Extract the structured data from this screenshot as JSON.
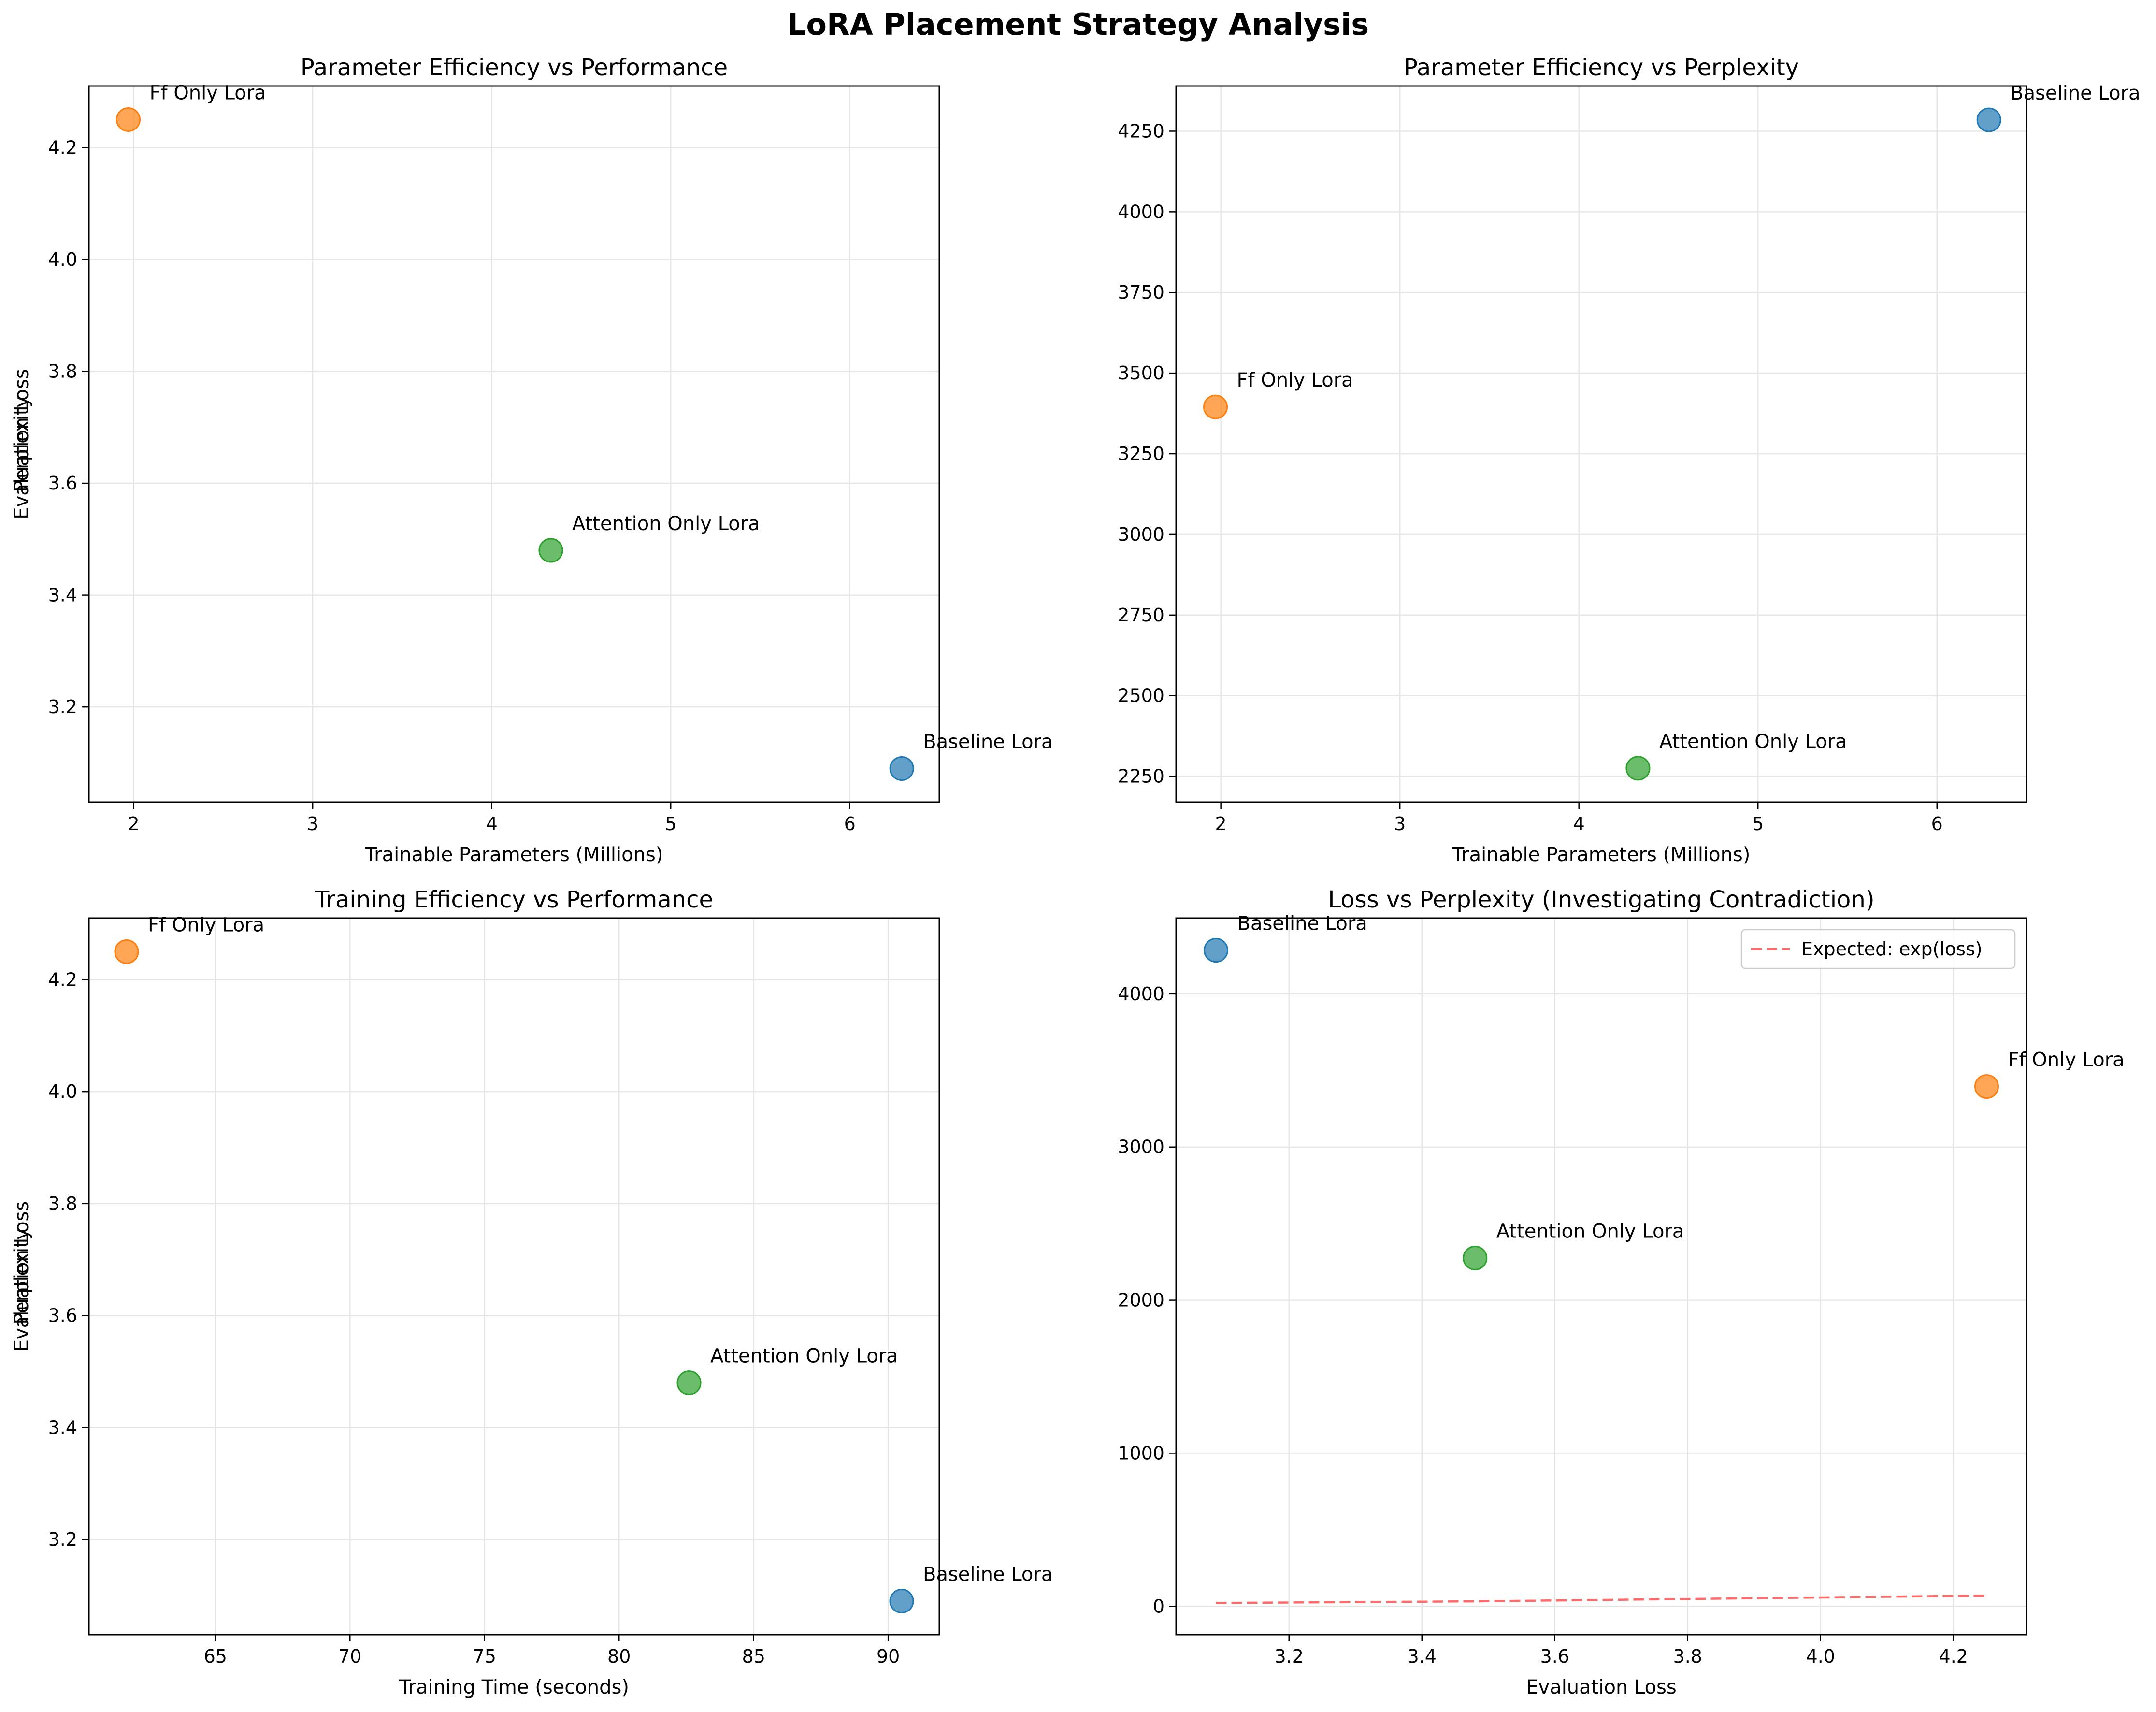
{
  "figure": {
    "title": "LoRA Placement Strategy Analysis"
  },
  "chart_data": [
    {
      "type": "scatter",
      "title": "Parameter Efficiency vs Performance",
      "xlabel": "Trainable Parameters (Millions)",
      "ylabel": "Evaluation Loss",
      "xlim": [
        1.75,
        6.5
      ],
      "ylim": [
        3.03,
        4.31
      ],
      "xticks": [
        2,
        3,
        4,
        5,
        6
      ],
      "yticks": [
        3.2,
        3.4,
        3.6,
        3.8,
        4.0,
        4.2
      ],
      "tick_decimals": [
        0,
        1
      ],
      "grid": true,
      "points": [
        {
          "label": "Baseline Lora",
          "x": 6.29,
          "y": 3.09,
          "color": "#1f77b4"
        },
        {
          "label": "Ff Only Lora",
          "x": 1.97,
          "y": 4.25,
          "color": "#ff7f0e"
        },
        {
          "label": "Attention Only Lora",
          "x": 4.33,
          "y": 3.48,
          "color": "#2ca02c"
        }
      ]
    },
    {
      "type": "scatter",
      "title": "Parameter Efficiency vs Perplexity",
      "xlabel": "Trainable Parameters (Millions)",
      "ylabel": "Perplexity",
      "xlim": [
        1.75,
        6.5
      ],
      "ylim": [
        2170,
        4390
      ],
      "xticks": [
        2,
        3,
        4,
        5,
        6
      ],
      "yticks": [
        2250,
        2500,
        2750,
        3000,
        3250,
        3500,
        3750,
        4000,
        4250
      ],
      "tick_decimals": [
        0,
        0
      ],
      "grid": true,
      "points": [
        {
          "label": "Baseline Lora",
          "x": 6.29,
          "y": 4285,
          "color": "#1f77b4"
        },
        {
          "label": "Ff Only Lora",
          "x": 1.97,
          "y": 3395,
          "color": "#ff7f0e"
        },
        {
          "label": "Attention Only Lora",
          "x": 4.33,
          "y": 2275,
          "color": "#2ca02c"
        }
      ]
    },
    {
      "type": "scatter",
      "title": "Training Efficiency vs Performance",
      "xlabel": "Training Time (seconds)",
      "ylabel": "Evaluation Loss",
      "xlim": [
        60.3,
        91.9
      ],
      "ylim": [
        3.03,
        4.31
      ],
      "xticks": [
        65,
        70,
        75,
        80,
        85,
        90
      ],
      "yticks": [
        3.2,
        3.4,
        3.6,
        3.8,
        4.0,
        4.2
      ],
      "tick_decimals": [
        0,
        1
      ],
      "grid": true,
      "points": [
        {
          "label": "Baseline Lora",
          "x": 90.5,
          "y": 3.09,
          "color": "#1f77b4"
        },
        {
          "label": "Ff Only Lora",
          "x": 61.7,
          "y": 4.25,
          "color": "#ff7f0e"
        },
        {
          "label": "Attention Only Lora",
          "x": 82.6,
          "y": 3.48,
          "color": "#2ca02c"
        }
      ]
    },
    {
      "type": "scatter",
      "title": "Loss vs Perplexity (Investigating Contradiction)",
      "xlabel": "Evaluation Loss",
      "ylabel": "Perplexity",
      "xlim": [
        3.03,
        4.31
      ],
      "ylim": [
        -185,
        4495
      ],
      "xticks": [
        3.2,
        3.4,
        3.6,
        3.8,
        4.0,
        4.2
      ],
      "yticks": [
        0,
        1000,
        2000,
        3000,
        4000
      ],
      "tick_decimals": [
        1,
        0
      ],
      "grid": true,
      "legend": {
        "position": "top-right",
        "entries": [
          {
            "label": "Expected: exp(loss)",
            "color": "#ff6b6b",
            "style": "dashed"
          }
        ]
      },
      "lines": [
        {
          "label": "Expected: exp(loss)",
          "color": "#ff6b6b",
          "style": "dashed",
          "x": [
            3.09,
            3.48,
            4.25
          ],
          "y": [
            22.0,
            32.5,
            70.1
          ]
        }
      ],
      "points": [
        {
          "label": "Baseline Lora",
          "x": 3.09,
          "y": 4285,
          "color": "#1f77b4"
        },
        {
          "label": "Ff Only Lora",
          "x": 4.25,
          "y": 3395,
          "color": "#ff7f0e"
        },
        {
          "label": "Attention Only Lora",
          "x": 3.48,
          "y": 2275,
          "color": "#2ca02c"
        }
      ]
    }
  ]
}
